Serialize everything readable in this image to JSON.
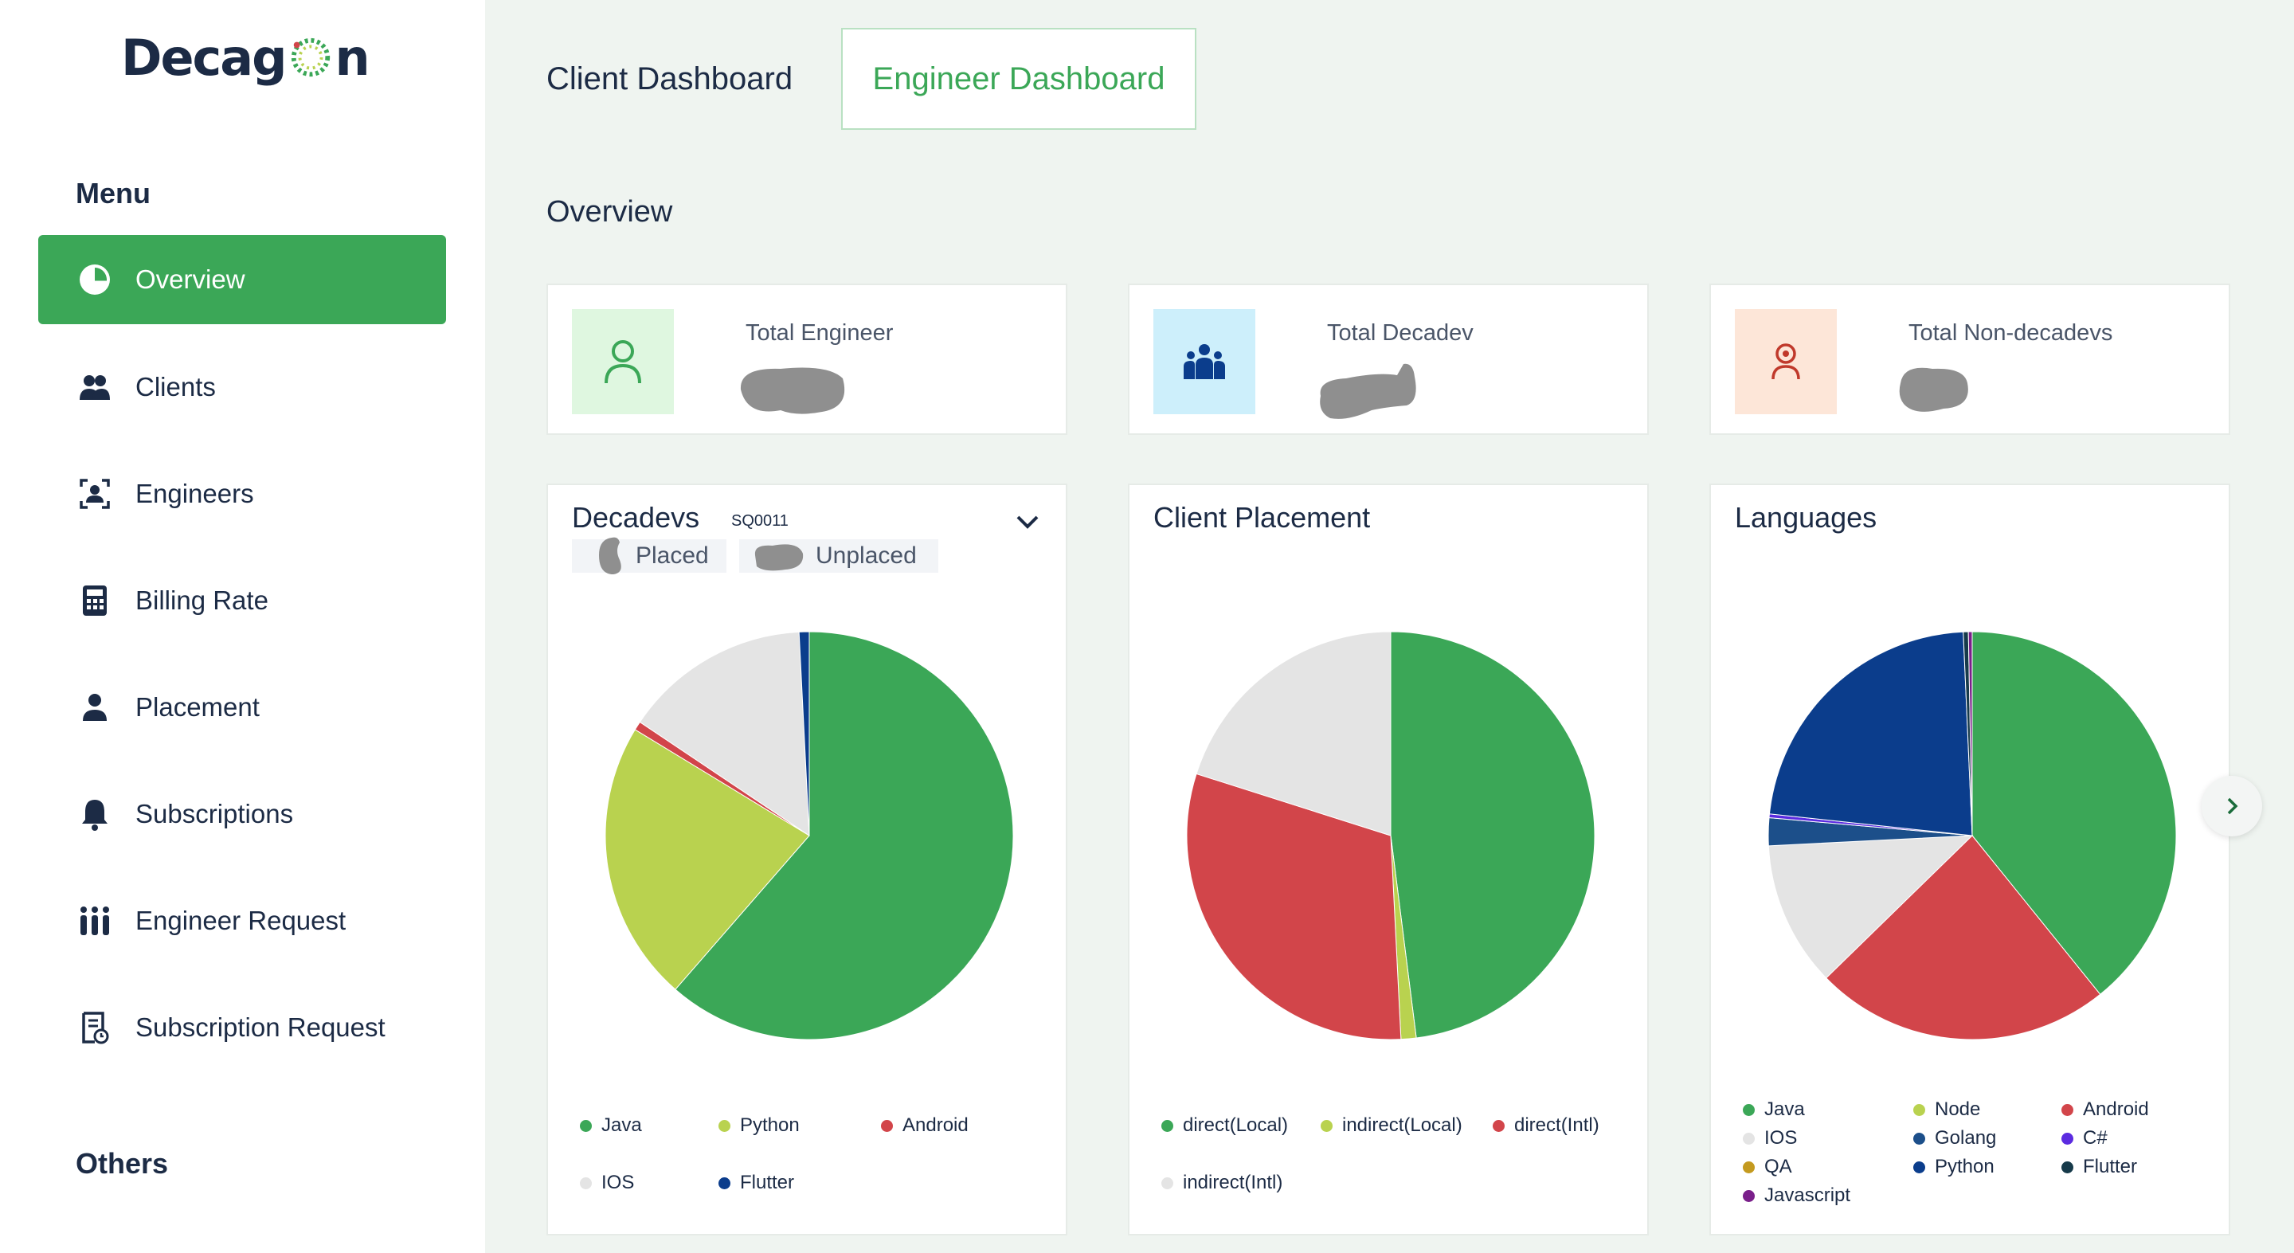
{
  "brand": {
    "name_left": "Decag",
    "name_right": "n"
  },
  "sidebar": {
    "menu_heading": "Menu",
    "others_heading": "Others",
    "items": [
      {
        "label": "Overview",
        "icon": "pie-chart-icon",
        "active": true
      },
      {
        "label": "Clients",
        "icon": "users-icon"
      },
      {
        "label": "Engineers",
        "icon": "id-badge-icon"
      },
      {
        "label": "Billing Rate",
        "icon": "calculator-icon"
      },
      {
        "label": "Placement",
        "icon": "user-icon"
      },
      {
        "label": "Subscriptions",
        "icon": "bell-icon"
      },
      {
        "label": "Engineer Request",
        "icon": "people-group-icon"
      },
      {
        "label": "Subscription Request",
        "icon": "document-clock-icon"
      }
    ]
  },
  "tabs": {
    "client": "Client Dashboard",
    "engineer": "Engineer Dashboard",
    "active": "engineer"
  },
  "overview": {
    "title": "Overview",
    "stats": [
      {
        "label": "Total Engineer",
        "icon": "person-outline-icon",
        "icon_bg": "#dff7e0",
        "icon_color": "#3ba757"
      },
      {
        "label": "Total Decadev",
        "icon": "team-icon",
        "icon_bg": "#cdeffb",
        "icon_color": "#0b3d8c"
      },
      {
        "label": "Total Non-decadevs",
        "icon": "person-target-icon",
        "icon_bg": "#fde6d8",
        "icon_color": "#c0392b"
      }
    ]
  },
  "colors": {
    "accent": "#3ba757",
    "navy": "#1c2b45"
  },
  "chart_data": [
    {
      "type": "pie",
      "title": "Decadevs",
      "subtitle": "SQ0011",
      "filters": [
        "Placed",
        "Unplaced"
      ],
      "categories": [
        "Java",
        "Python",
        "Android",
        "IOS",
        "Flutter"
      ],
      "values": [
        61.4,
        22.3,
        0.7,
        14.8,
        0.8
      ],
      "colors": [
        "#3ba757",
        "#b9d24f",
        "#d2454a",
        "#e4e4e4",
        "#0b3d8c"
      ]
    },
    {
      "type": "pie",
      "title": "Client Placement",
      "categories": [
        "direct(Local)",
        "indirect(Local)",
        "direct(Intl)",
        "indirect(Intl)"
      ],
      "values": [
        48.0,
        1.2,
        30.7,
        20.1
      ],
      "colors": [
        "#3ba757",
        "#b9d24f",
        "#d2454a",
        "#e4e4e4"
      ]
    },
    {
      "type": "pie",
      "title": "Languages",
      "categories": [
        "Java",
        "Node",
        "Android",
        "IOS",
        "Golang",
        "C#",
        "QA",
        "Python",
        "Flutter",
        "Javascript"
      ],
      "values": [
        39.2,
        0.0,
        23.5,
        11.5,
        2.2,
        0.3,
        0.0,
        22.6,
        0.4,
        0.3
      ],
      "colors": [
        "#3ba757",
        "#b9d24f",
        "#d2454a",
        "#e4e4e4",
        "#1c4f8a",
        "#5b2be0",
        "#c49a1f",
        "#0b3d8c",
        "#163a4a",
        "#7a1f8a"
      ]
    }
  ]
}
